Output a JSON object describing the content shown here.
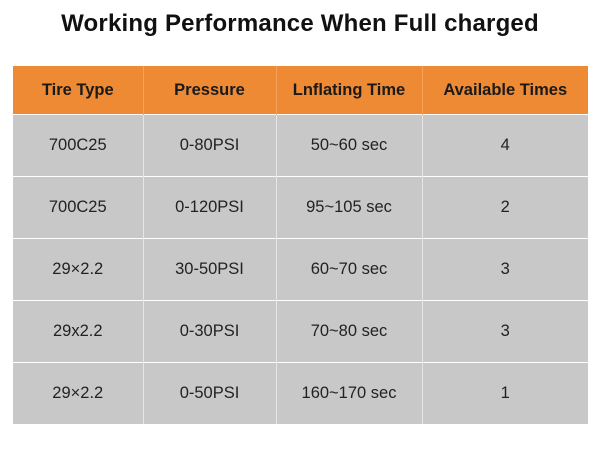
{
  "title": "Working Performance When Full charged",
  "table": {
    "headers": [
      "Tire Type",
      "Pressure",
      "Lnflating Time",
      "Available Times"
    ],
    "rows": [
      [
        "700C25",
        "0-80PSI",
        "50~60 sec",
        "4"
      ],
      [
        "700C25",
        "0-120PSI",
        "95~105 sec",
        "2"
      ],
      [
        "29×2.2",
        "30-50PSI",
        "60~70 sec",
        "3"
      ],
      [
        "29x2.2",
        "0-30PSI",
        "70~80 sec",
        "3"
      ],
      [
        "29×2.2",
        "0-50PSI",
        "160~170 sec",
        "1"
      ]
    ]
  },
  "colors": {
    "header_bg": "#ee8a33",
    "cell_bg": "#c8c8c8"
  }
}
